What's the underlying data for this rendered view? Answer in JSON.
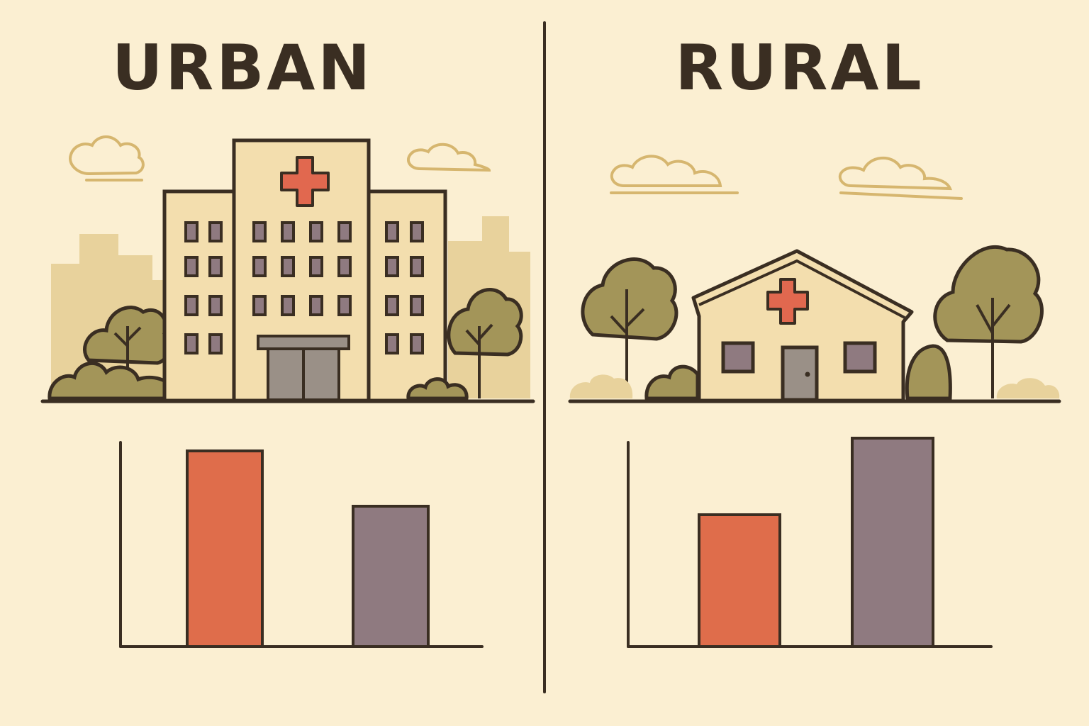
{
  "panels": {
    "urban": {
      "title": "URBAN"
    },
    "rural": {
      "title": "RURAL"
    }
  },
  "colors": {
    "background": "#fbefd2",
    "ink": "#3a2e22",
    "bar_orange": "#df6d4b",
    "bar_mauve": "#8f7a80",
    "cross": "#e1684f",
    "building": "#f3deae",
    "skyline": "#e8d29c",
    "tree": "#a39559",
    "cloud": "#d6b66f",
    "door": "#9a9087"
  },
  "icons": {
    "urban": "hospital-icon",
    "rural": "clinic-house-icon"
  },
  "chart_data": [
    {
      "type": "bar",
      "panel": "urban",
      "categories": [
        "",
        ""
      ],
      "values": [
        0.92,
        0.66
      ],
      "colors": [
        "#df6d4b",
        "#8f7a80"
      ],
      "ylim": [
        0,
        1
      ],
      "title": "",
      "xlabel": "",
      "ylabel": ""
    },
    {
      "type": "bar",
      "panel": "rural",
      "categories": [
        "",
        ""
      ],
      "values": [
        0.62,
        0.98
      ],
      "colors": [
        "#df6d4b",
        "#8f7a80"
      ],
      "ylim": [
        0,
        1
      ],
      "title": "",
      "xlabel": "",
      "ylabel": ""
    }
  ]
}
